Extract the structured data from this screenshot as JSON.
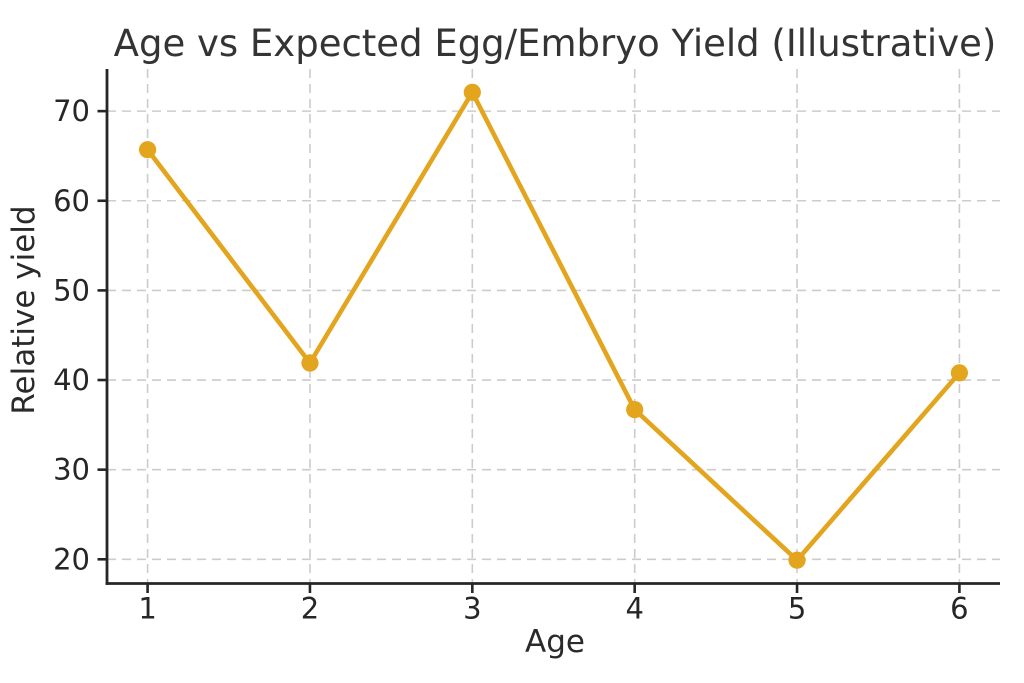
{
  "figure": {
    "title": "Age vs Expected Egg/Embryo Yield (Illustrative)",
    "xlabel": "Age",
    "ylabel": "Relative yield"
  },
  "chart_data": {
    "type": "line",
    "title": "Age vs Expected Egg/Embryo Yield (Illustrative)",
    "xlabel": "Age",
    "ylabel": "Relative yield",
    "x": [
      1,
      2,
      3,
      4,
      5,
      6
    ],
    "y": [
      65.7,
      41.9,
      72.1,
      36.7,
      19.9,
      40.8
    ],
    "xticks": [
      1,
      2,
      3,
      4,
      5,
      6
    ],
    "yticks": [
      20,
      30,
      40,
      50,
      60,
      70
    ],
    "xlim": [
      0.75,
      6.25
    ],
    "ylim": [
      17.3,
      74.7
    ],
    "grid": true,
    "grid_style": "dashed",
    "legend": null,
    "colors": {
      "line": "#E3A41E",
      "marker": "#E3A41E",
      "grid": "#cccccc",
      "spine": "#262626",
      "text": "#262626",
      "background": "#ffffff"
    }
  }
}
